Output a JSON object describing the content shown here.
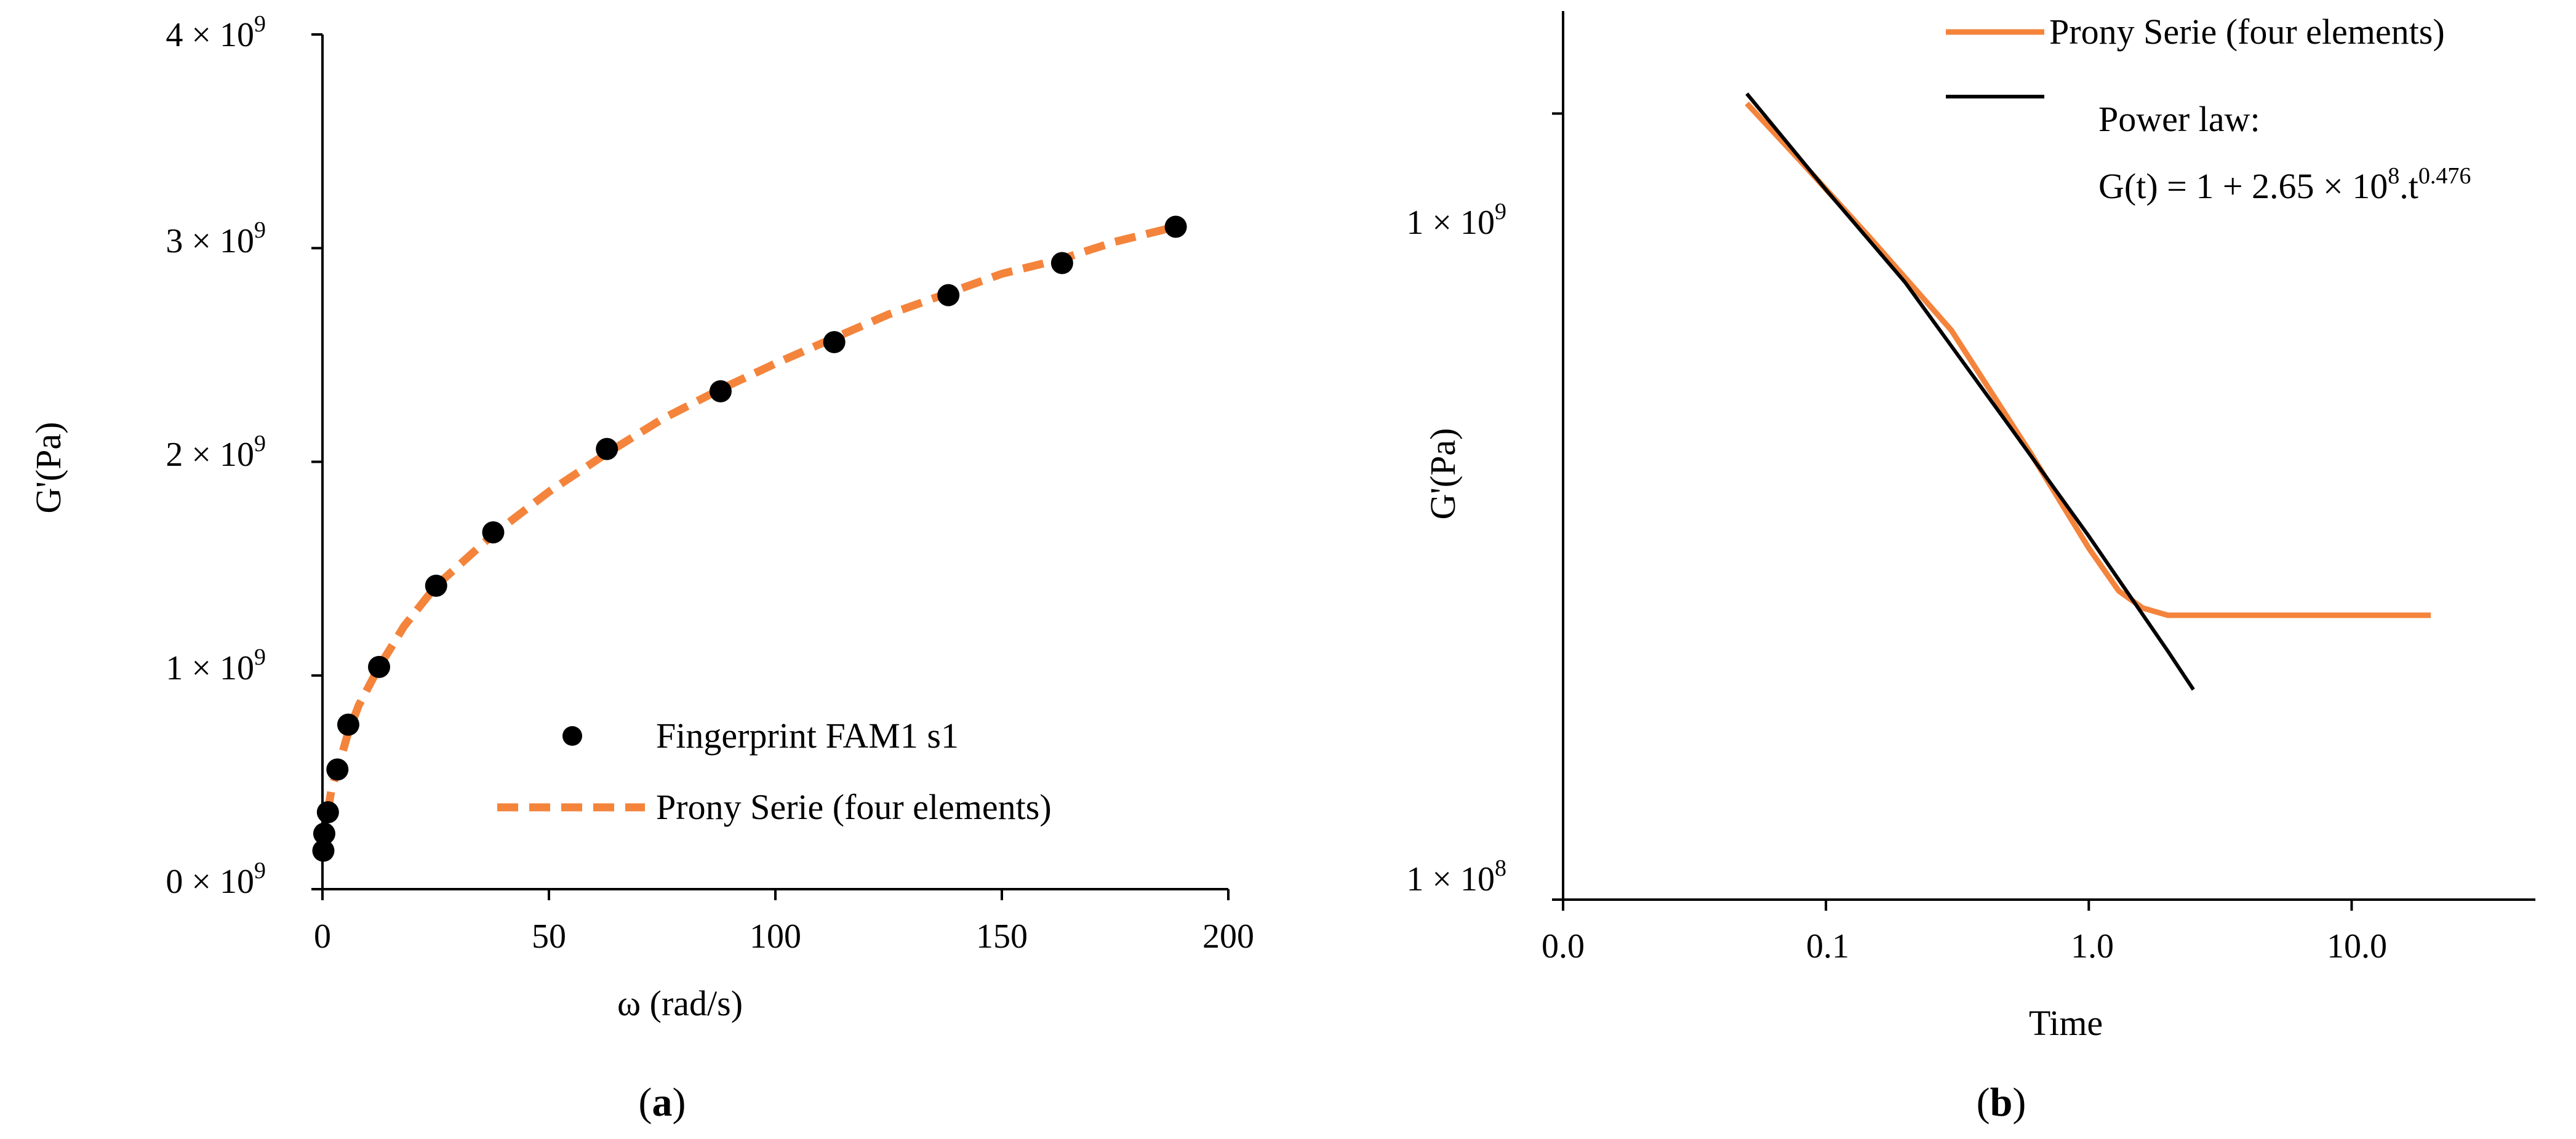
{
  "chart_data": [
    {
      "panel": "a",
      "type": "scatter",
      "xlabel": "ω (rad/s)",
      "ylabel": "G'(Pa)",
      "xlim": [
        0,
        200
      ],
      "ylim": [
        0,
        4000000000
      ],
      "x_ticks": [
        0,
        50,
        100,
        150,
        200
      ],
      "x_tick_labels": [
        "0",
        "50",
        "100",
        "150",
        "200"
      ],
      "y_ticks": [
        0,
        1000000000,
        2000000000,
        3000000000,
        4000000000
      ],
      "y_tick_labels": [
        {
          "base": "0 × 10",
          "exp": "9"
        },
        {
          "base": "1 × 10",
          "exp": "9"
        },
        {
          "base": "2 × 10",
          "exp": "9"
        },
        {
          "base": "3 × 10",
          "exp": "9"
        },
        {
          "base": "4 × 10",
          "exp": "9"
        }
      ],
      "grid": false,
      "legend_position": "bottom-right",
      "series": [
        {
          "name": "Fingerprint FAM1 s1",
          "style": "markers",
          "color": "#000000",
          "x": [
            0.2,
            0.4,
            1.2,
            3.3,
            5.7,
            12.5,
            25.1,
            37.7,
            62.8,
            87.9,
            113.0,
            138.2,
            163.3,
            188.4
          ],
          "y": [
            180000000,
            260000000,
            360000000,
            560000000,
            770000000,
            1040000000,
            1420000000,
            1670000000,
            2060000000,
            2330000000,
            2560000000,
            2780000000,
            2930000000,
            3100000000
          ]
        },
        {
          "name": "Prony Serie (four elements)",
          "style": "dashed-line",
          "color": "#F4843C",
          "x": [
            0.3,
            1,
            2,
            3.5,
            5.5,
            8,
            12.5,
            18,
            25.1,
            37.7,
            50,
            62.8,
            75,
            87.9,
            100,
            113.0,
            125,
            138.2,
            150,
            163.3,
            175,
            188.4
          ],
          "y": [
            210000000,
            340000000,
            470000000,
            570000000,
            720000000,
            860000000,
            1040000000,
            1230000000,
            1420000000,
            1660000000,
            1860000000,
            2040000000,
            2200000000,
            2340000000,
            2460000000,
            2580000000,
            2690000000,
            2790000000,
            2880000000,
            2950000000,
            3030000000,
            3100000000
          ]
        }
      ],
      "caption": "(a)",
      "caption_letter": "a"
    },
    {
      "panel": "b",
      "type": "line",
      "xlabel": "Time",
      "ylabel": "G'(Pa)",
      "x_scale": "log",
      "y_scale": "log",
      "xlim": [
        0.01,
        50
      ],
      "ylim": [
        100000000,
        1350000000
      ],
      "x_ticks": [
        0.01,
        0.1,
        1,
        10
      ],
      "x_tick_labels": [
        "0.0",
        "0.1",
        "1.0",
        "10.0"
      ],
      "y_ticks": [
        100000000,
        1000000000
      ],
      "y_tick_labels": [
        {
          "base": "1 × 10",
          "exp": "8"
        },
        {
          "base": "1 × 10",
          "exp": "9"
        }
      ],
      "grid": false,
      "legend_position": "top-right",
      "series": [
        {
          "name": "Prony Serie (four elements)",
          "style": "line",
          "color": "#F4843C",
          "x": [
            0.05,
            0.08,
            0.15,
            0.3,
            0.6,
            1.0,
            1.3,
            1.6,
            2.0,
            3.0,
            5.0,
            10.0,
            20.0
          ],
          "y": [
            1030000000,
            870000000,
            690000000,
            530000000,
            370000000,
            280000000,
            247000000,
            235000000,
            230000000,
            230000000,
            230000000,
            230000000,
            230000000
          ]
        },
        {
          "name": "Power law:",
          "style": "line",
          "color": "#000000",
          "x": [
            0.05,
            0.1,
            0.2,
            0.5,
            1.0,
            2.0,
            2.5
          ],
          "y": [
            1060000000,
            800000000,
            610000000,
            400000000,
            290000000,
            207000000,
            185000000
          ]
        }
      ],
      "annotation": {
        "line1": "Power law:",
        "line2_prefix": "G(t) = 1 + 2.65 × 10",
        "line2_exp1": "8",
        "line2_mid": ".t",
        "line2_exp2": "0.476"
      },
      "caption": "(b)",
      "caption_letter": "b"
    }
  ]
}
